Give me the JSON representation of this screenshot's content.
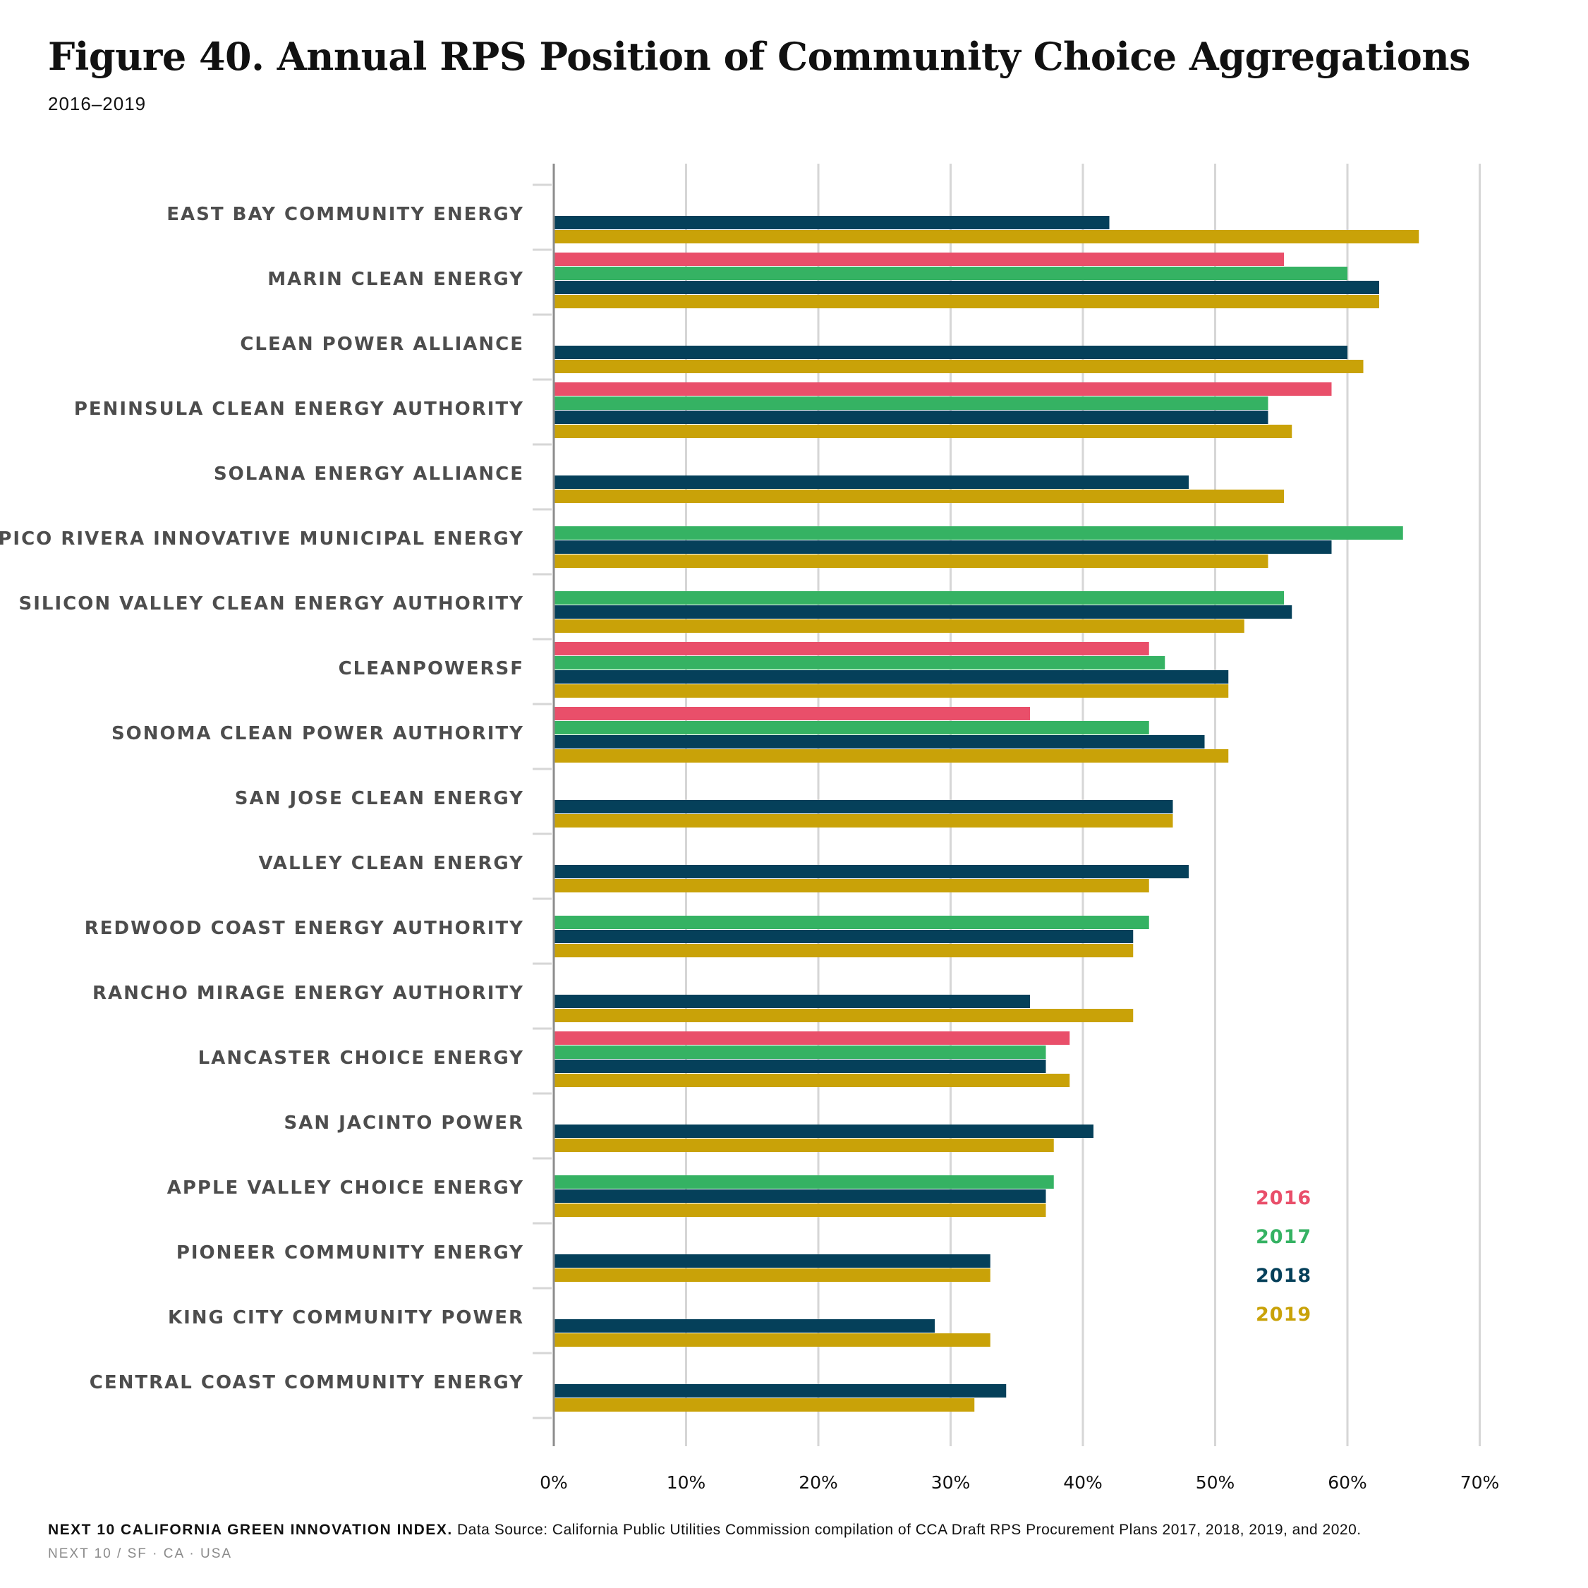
{
  "title": "Figure 40. Annual RPS Position of Community Choice Aggregations",
  "subtitle": "2016–2019",
  "footer": {
    "source_org": "NEXT 10 CALIFORNIA GREEN INNOVATION INDEX.",
    "source_text": "Data Source: California Public Utilities Commission compilation of CCA Draft RPS Procurement Plans 2017, 2018, 2019, and 2020.",
    "credit": "NEXT 10  /  SF · CA · USA"
  },
  "colors": {
    "2016": "#e94f6a",
    "2017": "#35b263",
    "2018": "#05405a",
    "2019": "#c9a208",
    "grid": "#d6d6d6",
    "axis": "#8c8c8c"
  },
  "chart_data": {
    "type": "bar",
    "orientation": "horizontal",
    "xlim": [
      0,
      70
    ],
    "x_ticks": [
      "0%",
      "10%",
      "20%",
      "30%",
      "40%",
      "50%",
      "60%",
      "70%"
    ],
    "x_tick_values": [
      0,
      10,
      20,
      30,
      40,
      50,
      60,
      70
    ],
    "grid": true,
    "legend_position": "bottom-right",
    "categories": [
      "EAST BAY COMMUNITY ENERGY",
      "MARIN CLEAN ENERGY",
      "CLEAN POWER ALLIANCE",
      "PENINSULA CLEAN ENERGY AUTHORITY",
      "SOLANA ENERGY ALLIANCE",
      "PICO RIVERA INNOVATIVE MUNICIPAL ENERGY",
      "SILICON VALLEY CLEAN ENERGY AUTHORITY",
      "CLEANPOWERSF",
      "SONOMA CLEAN POWER AUTHORITY",
      "SAN JOSE CLEAN ENERGY",
      "VALLEY CLEAN ENERGY",
      "REDWOOD COAST ENERGY AUTHORITY",
      "RANCHO MIRAGE ENERGY AUTHORITY",
      "LANCASTER CHOICE ENERGY",
      "SAN JACINTO POWER",
      "APPLE VALLEY CHOICE ENERGY",
      "PIONEER COMMUNITY ENERGY",
      "KING CITY COMMUNITY POWER",
      "CENTRAL COAST COMMUNITY ENERGY"
    ],
    "series": [
      {
        "name": "2016",
        "values": [
          null,
          55.2,
          null,
          58.8,
          null,
          null,
          null,
          45.0,
          36.0,
          null,
          null,
          null,
          null,
          39.0,
          null,
          null,
          null,
          null,
          null
        ]
      },
      {
        "name": "2017",
        "values": [
          null,
          60.0,
          null,
          54.0,
          null,
          64.2,
          55.2,
          46.2,
          45.0,
          null,
          null,
          45.0,
          null,
          37.2,
          null,
          37.8,
          null,
          null,
          null
        ]
      },
      {
        "name": "2018",
        "values": [
          42.0,
          62.4,
          60.0,
          54.0,
          48.0,
          58.8,
          55.8,
          51.0,
          49.2,
          46.8,
          48.0,
          43.8,
          36.0,
          37.2,
          40.8,
          37.2,
          33.0,
          28.8,
          34.2
        ]
      },
      {
        "name": "2019",
        "values": [
          65.4,
          62.4,
          61.2,
          55.8,
          55.2,
          54.0,
          52.2,
          51.0,
          51.0,
          46.8,
          45.0,
          43.8,
          43.8,
          39.0,
          37.8,
          37.2,
          33.0,
          33.0,
          31.8
        ]
      }
    ]
  }
}
